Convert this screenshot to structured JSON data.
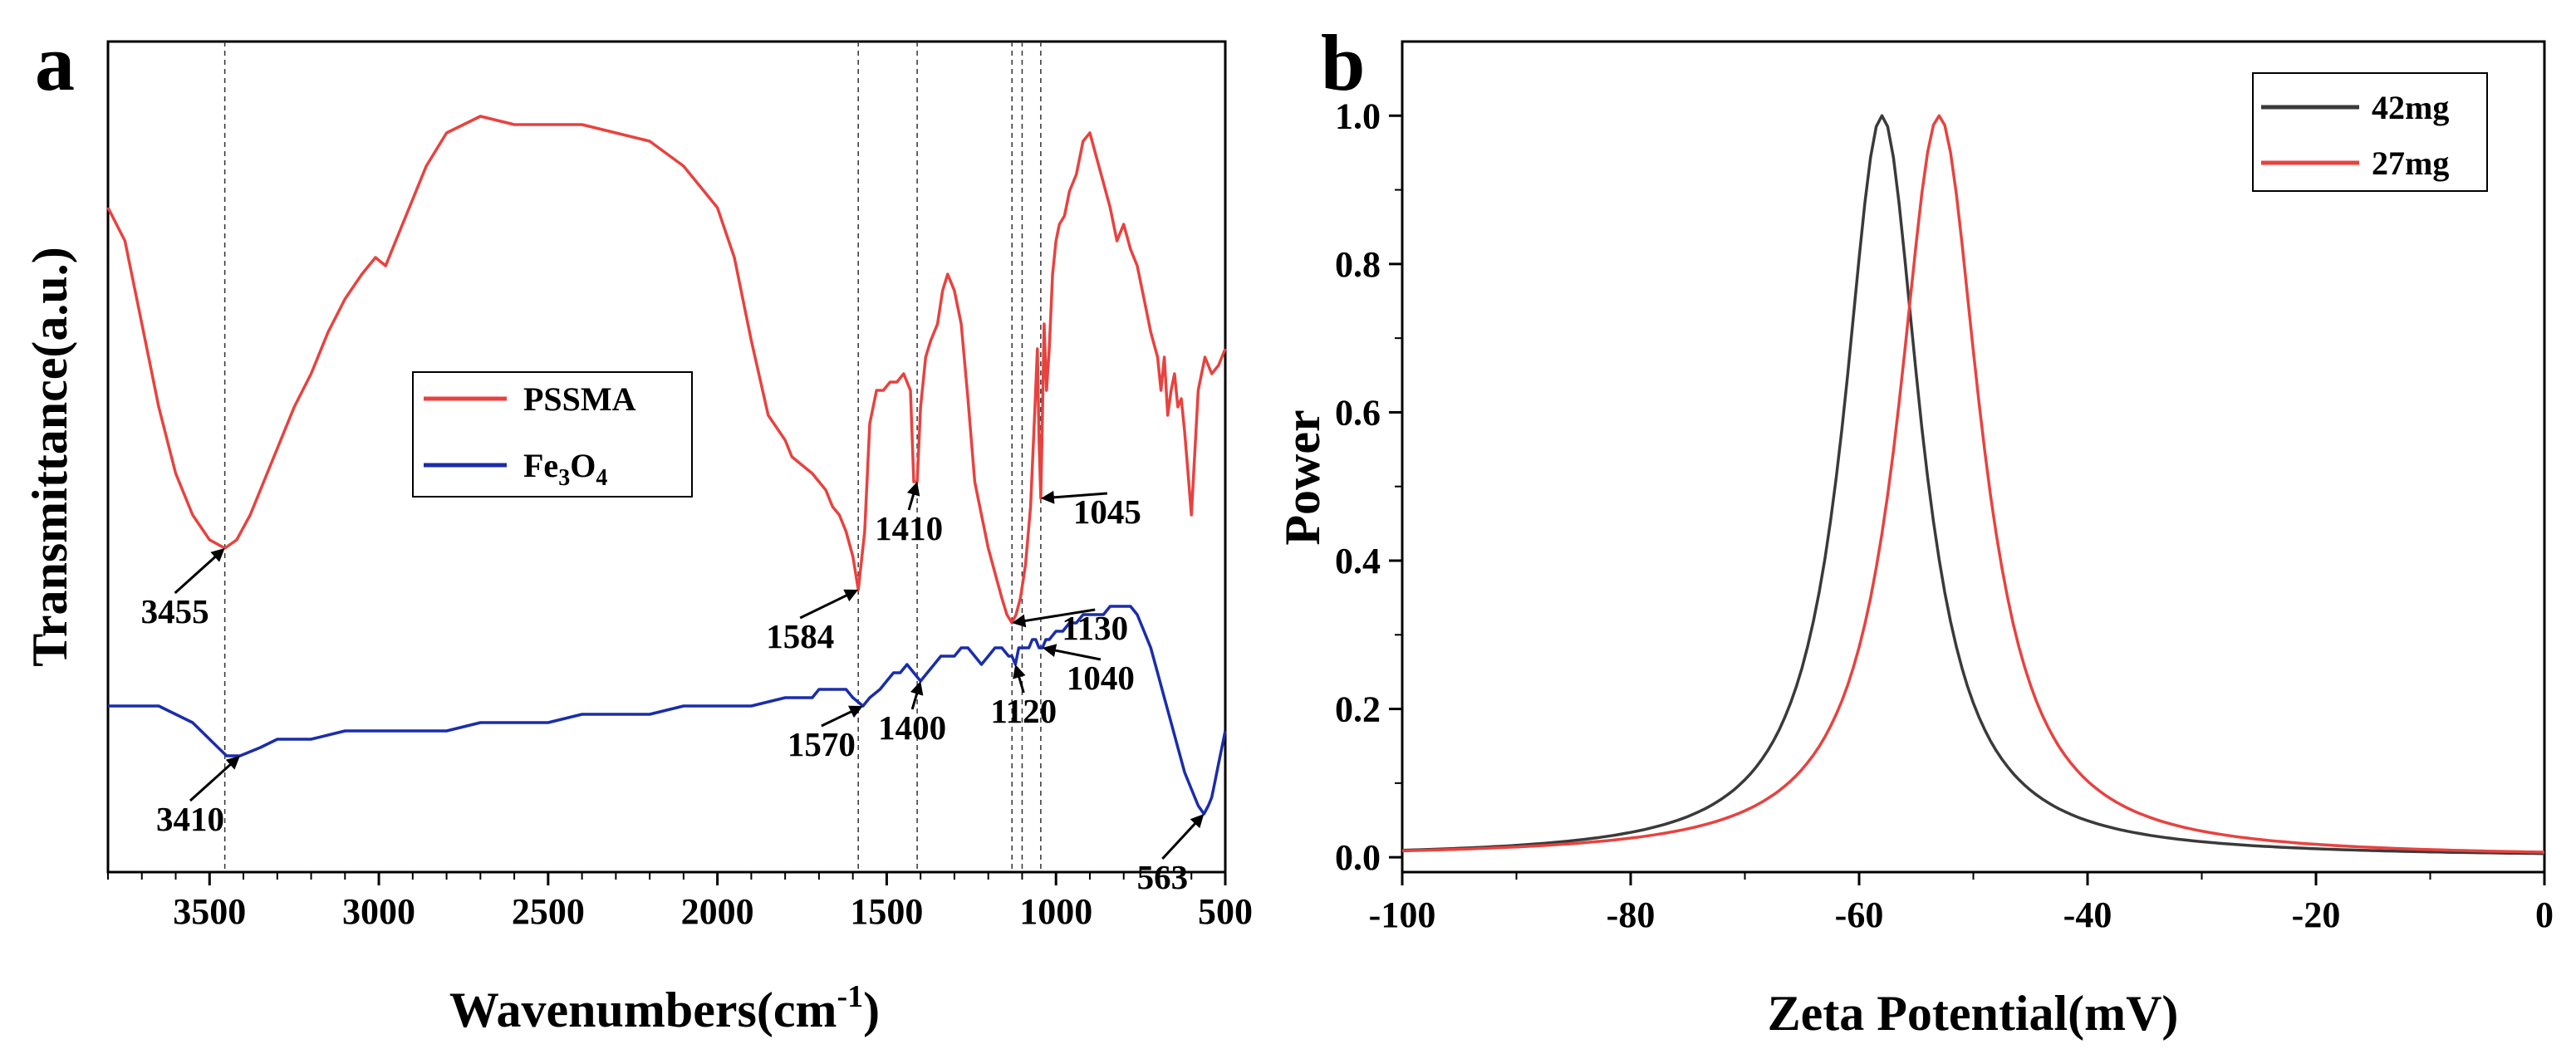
{
  "chart_data": [
    {
      "panel": "a",
      "type": "line",
      "title": "",
      "xlabel": "Wavenumbers(cm",
      "xlabel_sup": "-1",
      "xlabel_tail": ")",
      "ylabel": "Transmittance(a.u.)",
      "xlim": [
        3800,
        500
      ],
      "x_reversed": true,
      "xticks": [
        3500,
        3000,
        2500,
        2000,
        1500,
        1000,
        500
      ],
      "y_ticks_shown": false,
      "legend": {
        "position": "center-left",
        "entries": [
          {
            "label": "PSSMA",
            "color": "#e8423f"
          },
          {
            "label_main": "Fe",
            "sub1": "3",
            "label_mid": "O",
            "sub2": "4",
            "color": "#1a2daa"
          }
        ]
      },
      "series": [
        {
          "name": "PSSMA",
          "color": "#e8423f",
          "x": [
            3800,
            3750,
            3700,
            3650,
            3600,
            3550,
            3500,
            3455,
            3420,
            3380,
            3340,
            3300,
            3250,
            3200,
            3150,
            3100,
            3050,
            3010,
            2980,
            2950,
            2900,
            2860,
            2800,
            2700,
            2600,
            2500,
            2400,
            2300,
            2200,
            2100,
            2000,
            1950,
            1900,
            1850,
            1800,
            1780,
            1750,
            1720,
            1700,
            1680,
            1660,
            1640,
            1620,
            1600,
            1584,
            1565,
            1550,
            1530,
            1510,
            1490,
            1470,
            1450,
            1430,
            1420,
            1410,
            1400,
            1385,
            1370,
            1350,
            1335,
            1320,
            1300,
            1280,
            1260,
            1240,
            1220,
            1200,
            1180,
            1160,
            1145,
            1130,
            1118,
            1105,
            1090,
            1075,
            1062,
            1055,
            1050,
            1045,
            1040,
            1035,
            1028,
            1020,
            1010,
            1000,
            990,
            975,
            960,
            940,
            920,
            900,
            880,
            860,
            840,
            820,
            800,
            780,
            760,
            740,
            720,
            700,
            690,
            680,
            670,
            660,
            650,
            640,
            630,
            620,
            610,
            600,
            580,
            560,
            540,
            520,
            500
          ],
          "y": [
            0.8,
            0.76,
            0.66,
            0.56,
            0.48,
            0.43,
            0.4,
            0.39,
            0.4,
            0.43,
            0.47,
            0.51,
            0.56,
            0.6,
            0.65,
            0.69,
            0.72,
            0.74,
            0.73,
            0.76,
            0.81,
            0.85,
            0.89,
            0.91,
            0.9,
            0.9,
            0.9,
            0.89,
            0.88,
            0.85,
            0.8,
            0.74,
            0.64,
            0.55,
            0.52,
            0.5,
            0.49,
            0.48,
            0.47,
            0.46,
            0.44,
            0.43,
            0.41,
            0.38,
            0.34,
            0.41,
            0.54,
            0.58,
            0.58,
            0.59,
            0.59,
            0.6,
            0.58,
            0.47,
            0.47,
            0.56,
            0.62,
            0.64,
            0.66,
            0.7,
            0.72,
            0.7,
            0.66,
            0.57,
            0.47,
            0.43,
            0.39,
            0.36,
            0.33,
            0.31,
            0.3,
            0.31,
            0.33,
            0.37,
            0.44,
            0.56,
            0.63,
            0.52,
            0.45,
            0.55,
            0.66,
            0.58,
            0.63,
            0.72,
            0.76,
            0.78,
            0.79,
            0.82,
            0.84,
            0.88,
            0.89,
            0.86,
            0.83,
            0.8,
            0.76,
            0.78,
            0.75,
            0.73,
            0.69,
            0.65,
            0.62,
            0.58,
            0.62,
            0.55,
            0.58,
            0.6,
            0.56,
            0.57,
            0.53,
            0.48,
            0.43,
            0.58,
            0.62,
            0.6,
            0.61,
            0.63
          ]
        },
        {
          "name": "Fe3O4",
          "color": "#1a2daa",
          "x": [
            3800,
            3750,
            3700,
            3650,
            3600,
            3550,
            3500,
            3450,
            3410,
            3350,
            3300,
            3200,
            3100,
            3000,
            2900,
            2800,
            2700,
            2600,
            2500,
            2400,
            2300,
            2200,
            2100,
            2000,
            1900,
            1800,
            1750,
            1720,
            1700,
            1680,
            1650,
            1620,
            1600,
            1570,
            1550,
            1520,
            1500,
            1480,
            1460,
            1440,
            1420,
            1400,
            1380,
            1360,
            1340,
            1320,
            1300,
            1280,
            1260,
            1240,
            1220,
            1200,
            1180,
            1160,
            1140,
            1130,
            1120,
            1110,
            1100,
            1090,
            1080,
            1070,
            1060,
            1050,
            1040,
            1030,
            1020,
            1000,
            980,
            960,
            940,
            920,
            900,
            880,
            860,
            840,
            820,
            800,
            780,
            760,
            740,
            720,
            700,
            680,
            660,
            640,
            620,
            600,
            580,
            563,
            550,
            540,
            530,
            520,
            510,
            500
          ],
          "y": [
            0.2,
            0.2,
            0.2,
            0.2,
            0.19,
            0.18,
            0.16,
            0.14,
            0.14,
            0.15,
            0.16,
            0.16,
            0.17,
            0.17,
            0.17,
            0.17,
            0.18,
            0.18,
            0.18,
            0.19,
            0.19,
            0.19,
            0.2,
            0.2,
            0.2,
            0.21,
            0.21,
            0.21,
            0.22,
            0.22,
            0.22,
            0.22,
            0.21,
            0.2,
            0.21,
            0.22,
            0.23,
            0.24,
            0.24,
            0.25,
            0.24,
            0.23,
            0.24,
            0.25,
            0.26,
            0.26,
            0.26,
            0.27,
            0.27,
            0.26,
            0.25,
            0.26,
            0.27,
            0.27,
            0.26,
            0.26,
            0.25,
            0.27,
            0.27,
            0.27,
            0.27,
            0.28,
            0.28,
            0.27,
            0.27,
            0.28,
            0.28,
            0.29,
            0.29,
            0.3,
            0.3,
            0.31,
            0.31,
            0.31,
            0.31,
            0.32,
            0.32,
            0.32,
            0.32,
            0.31,
            0.29,
            0.27,
            0.24,
            0.21,
            0.18,
            0.15,
            0.12,
            0.1,
            0.08,
            0.07,
            0.08,
            0.09,
            0.11,
            0.13,
            0.15,
            0.17
          ]
        }
      ],
      "vlines": [
        3455,
        1584,
        1410,
        1130,
        1100,
        1045
      ],
      "annotations": [
        {
          "text": "3455",
          "x": 3455,
          "y": 0.39
        },
        {
          "text": "1584",
          "x": 1584,
          "y": 0.34
        },
        {
          "text": "1410",
          "x": 1410,
          "y": 0.47
        },
        {
          "text": "1130",
          "x": 1130,
          "y": 0.3
        },
        {
          "text": "1045",
          "x": 1045,
          "y": 0.45
        },
        {
          "text": "3410",
          "x": 3410,
          "y": 0.14
        },
        {
          "text": "1570",
          "x": 1570,
          "y": 0.2
        },
        {
          "text": "1400",
          "x": 1400,
          "y": 0.23
        },
        {
          "text": "1120",
          "x": 1120,
          "y": 0.25
        },
        {
          "text": "1040",
          "x": 1040,
          "y": 0.27
        },
        {
          "text": "563",
          "x": 563,
          "y": 0.07
        }
      ]
    },
    {
      "panel": "b",
      "type": "line",
      "title": "",
      "xlabel": "Zeta Potential(mV)",
      "ylabel": "Power",
      "xlim": [
        -100,
        0
      ],
      "ylim": [
        -0.02,
        1.1
      ],
      "xticks": [
        -100,
        -80,
        -60,
        -40,
        -20,
        0
      ],
      "yticks": [
        0.0,
        0.2,
        0.4,
        0.6,
        0.8,
        1.0
      ],
      "xtick_labels": [
        "-100",
        "-80",
        "-60",
        "-40",
        "-20",
        "0"
      ],
      "ytick_labels": [
        "0.0",
        "0.2",
        "0.4",
        "0.6",
        "0.8",
        "1.0"
      ],
      "legend": {
        "position": "top-right",
        "entries": [
          {
            "label": "42mg",
            "color": "#3a3a3a"
          },
          {
            "label": "27mg",
            "color": "#e8423f"
          }
        ]
      },
      "series": [
        {
          "name": "42mg",
          "color": "#3a3a3a",
          "peak": -58,
          "hwhm": 4.1
        },
        {
          "name": "27mg",
          "color": "#e8423f",
          "peak": -53,
          "hwhm": 4.4
        }
      ]
    }
  ]
}
